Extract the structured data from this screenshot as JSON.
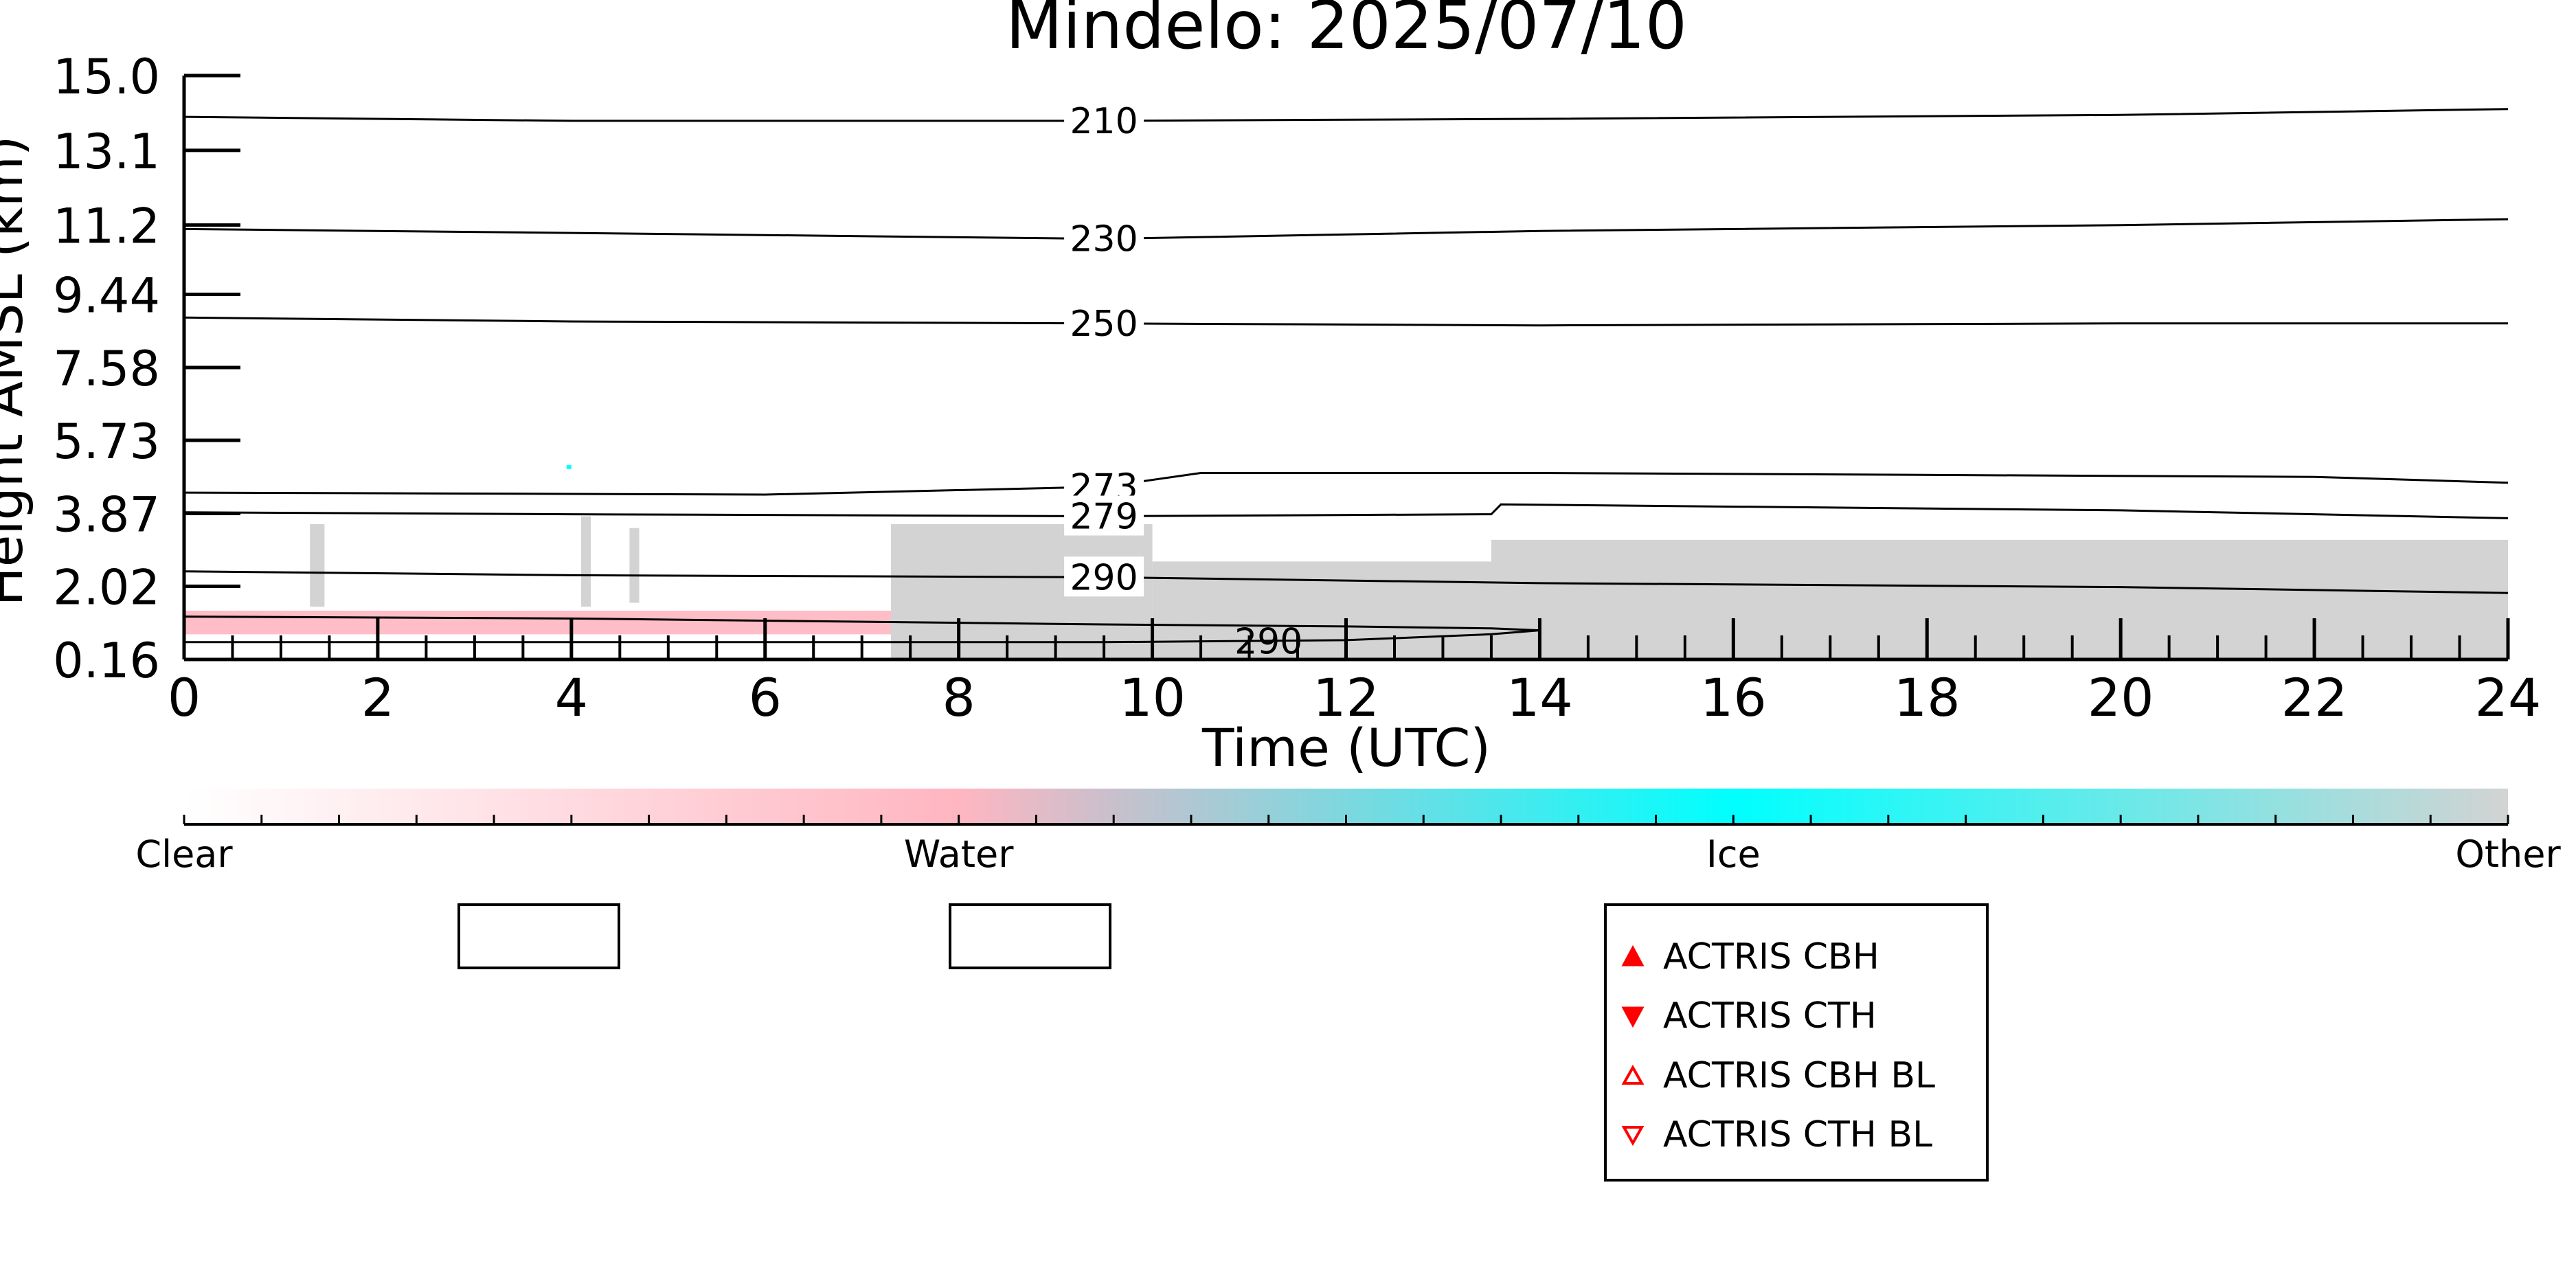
{
  "chart_data": {
    "type": "heatmap",
    "title": "Mindelo: 2025/07/10",
    "xlabel": "Time (UTC)",
    "ylabel": "Height AMSL (km)",
    "xlim": [
      0,
      24
    ],
    "ylim": [
      0.16,
      15.0
    ],
    "x_ticks": [
      0,
      2,
      4,
      6,
      8,
      10,
      12,
      14,
      16,
      18,
      20,
      22,
      24
    ],
    "x_tick_labels": [
      "0",
      "2",
      "4",
      "6",
      "8",
      "10",
      "12",
      "14",
      "16",
      "18",
      "20",
      "22",
      "24"
    ],
    "y_ticks": [
      0.16,
      2.02,
      3.87,
      5.73,
      7.58,
      9.44,
      11.2,
      13.1,
      15.0
    ],
    "y_tick_labels": [
      "0.16",
      "2.02",
      "3.87",
      "5.73",
      "7.58",
      "9.44",
      "11.2",
      "13.1",
      "15.0"
    ],
    "temperature_contours": [
      {
        "label": "210",
        "x": [
          0,
          4,
          9.5,
          14,
          20,
          24
        ],
        "y": [
          13.95,
          13.85,
          13.85,
          13.9,
          14.0,
          14.15
        ]
      },
      {
        "label": "230",
        "x": [
          0,
          4,
          9.5,
          14,
          20,
          24
        ],
        "y": [
          11.1,
          11.0,
          10.85,
          11.05,
          11.2,
          11.35
        ]
      },
      {
        "label": "250",
        "x": [
          0,
          4,
          9.5,
          14,
          20,
          24
        ],
        "y": [
          8.85,
          8.75,
          8.7,
          8.65,
          8.7,
          8.7
        ]
      },
      {
        "label": "273",
        "x": [
          0,
          6,
          9.5,
          10.5,
          14,
          22,
          24
        ],
        "y": [
          4.4,
          4.35,
          4.55,
          4.9,
          4.9,
          4.8,
          4.65
        ]
      },
      {
        "label": "279",
        "x": [
          0,
          4,
          9.5,
          13.5,
          13.6,
          20,
          24
        ],
        "y": [
          3.9,
          3.85,
          3.8,
          3.85,
          4.1,
          3.95,
          3.75
        ]
      },
      {
        "label": "290",
        "x": [
          0,
          4,
          9.5,
          14,
          20,
          24
        ],
        "y": [
          2.4,
          2.3,
          2.25,
          2.1,
          2.0,
          1.85
        ]
      },
      {
        "label": "290",
        "x": [
          0,
          4,
          9.5,
          12,
          13.5,
          14.0,
          13.5,
          12,
          9.5,
          4,
          0
        ],
        "y": [
          1.25,
          1.2,
          1.05,
          1.0,
          0.95,
          0.9,
          0.8,
          0.65,
          0.6,
          0.6,
          0.6
        ]
      }
    ],
    "target_classes": {
      "Clear": "#ffffff",
      "Water": "#ffb6c1",
      "Ice": "#00ffff",
      "Other": "#d3d3d3"
    },
    "regions": [
      {
        "class": "Water",
        "x0": 0.0,
        "x1": 10.0,
        "y0": 0.8,
        "y1": 1.4
      },
      {
        "class": "Other",
        "x0": 7.3,
        "x1": 10.0,
        "y0": 0.16,
        "y1": 3.6
      },
      {
        "class": "Other",
        "x0": 10.0,
        "x1": 13.5,
        "y0": 0.16,
        "y1": 2.65
      },
      {
        "class": "Other",
        "x0": 13.5,
        "x1": 24.0,
        "y0": 0.16,
        "y1": 3.2
      },
      {
        "class": "Other",
        "x0": 1.3,
        "x1": 1.45,
        "y0": 1.5,
        "y1": 3.6
      },
      {
        "class": "Other",
        "x0": 4.1,
        "x1": 4.2,
        "y0": 1.5,
        "y1": 3.8
      },
      {
        "class": "Other",
        "x0": 4.6,
        "x1": 4.7,
        "y0": 1.6,
        "y1": 3.5
      },
      {
        "class": "Ice",
        "x0": 3.95,
        "x1": 4.0,
        "y0": 5.0,
        "y1": 5.1
      }
    ],
    "legend_markers": [
      {
        "label": "ACTRIS CBH",
        "marker": "triangle-up-filled",
        "color": "#ff0000"
      },
      {
        "label": "ACTRIS CTH",
        "marker": "triangle-down-filled",
        "color": "#ff0000"
      },
      {
        "label": "ACTRIS CBH BL",
        "marker": "triangle-up-open",
        "color": "#ff0000"
      },
      {
        "label": "ACTRIS CTH BL",
        "marker": "triangle-down-open",
        "color": "#ff0000"
      }
    ],
    "colorbar": {
      "labels": [
        "Clear",
        "Water",
        "Ice",
        "Other"
      ],
      "stops": [
        {
          "pos": 0.0,
          "color": "#ffffff"
        },
        {
          "pos": 0.333,
          "color": "#ffb6c1"
        },
        {
          "pos": 0.4,
          "color": "#c8c0cc"
        },
        {
          "pos": 0.667,
          "color": "#00ffff"
        },
        {
          "pos": 1.0,
          "color": "#d3d3d3"
        }
      ]
    }
  }
}
